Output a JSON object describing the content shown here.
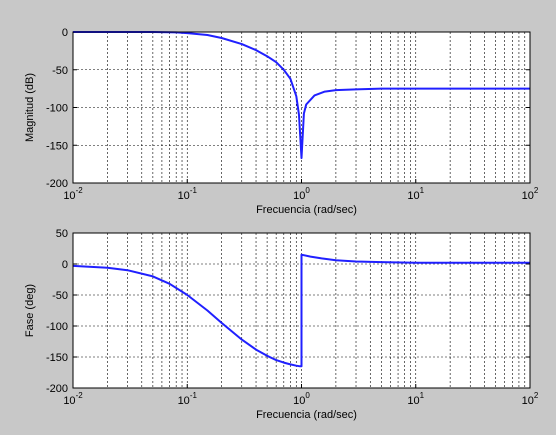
{
  "background": "#c8c8c8",
  "line_color": "#2020ff",
  "chart_data": [
    {
      "type": "line",
      "xscale": "log",
      "xlim": [
        0.01,
        100
      ],
      "ylim": [
        -200,
        0
      ],
      "grid": true,
      "xlabel": "Frecuencia (rad/sec)",
      "ylabel": "Magnitud (dB)",
      "xticks": [
        {
          "base": "10",
          "exp": "-2"
        },
        {
          "base": "10",
          "exp": "-1"
        },
        {
          "base": "10",
          "exp": "0"
        },
        {
          "base": "10",
          "exp": "1"
        },
        {
          "base": "10",
          "exp": "2"
        }
      ],
      "yticks": [
        "0",
        "-50",
        "-100",
        "-150",
        "-200"
      ],
      "series": [
        {
          "x": [
            0.01,
            0.05,
            0.08,
            0.1,
            0.15,
            0.2,
            0.3,
            0.4,
            0.5,
            0.6,
            0.7,
            0.8,
            0.9,
            0.95,
            1.0,
            1.05,
            1.1,
            1.3,
            1.6,
            2,
            3,
            5,
            10,
            30,
            100
          ],
          "y": [
            0,
            0,
            -0.5,
            -1.5,
            -4,
            -8,
            -16,
            -24,
            -32,
            -40,
            -50,
            -62,
            -85,
            -110,
            -167,
            -108,
            -96,
            -84,
            -79,
            -77,
            -76,
            -75,
            -75,
            -75,
            -75
          ]
        }
      ]
    },
    {
      "type": "line",
      "xscale": "log",
      "xlim": [
        0.01,
        100
      ],
      "ylim": [
        -200,
        50
      ],
      "grid": true,
      "xlabel": "Frecuencia (rad/sec)",
      "ylabel": "Fase (deg)",
      "xticks": [
        {
          "base": "10",
          "exp": "-2"
        },
        {
          "base": "10",
          "exp": "-1"
        },
        {
          "base": "10",
          "exp": "0"
        },
        {
          "base": "10",
          "exp": "1"
        },
        {
          "base": "10",
          "exp": "2"
        }
      ],
      "yticks": [
        "50",
        "0",
        "-50",
        "-100",
        "-150",
        "-200"
      ],
      "series": [
        {
          "x": [
            0.01,
            0.02,
            0.03,
            0.05,
            0.07,
            0.1,
            0.15,
            0.2,
            0.3,
            0.4,
            0.5,
            0.6,
            0.7,
            0.8,
            0.9,
            0.97,
            1.0,
            1.0,
            1.2,
            1.5,
            2,
            3,
            5,
            10,
            30,
            100
          ],
          "y": [
            -3,
            -6,
            -10,
            -20,
            -32,
            -50,
            -75,
            -95,
            -122,
            -138,
            -148,
            -155,
            -159,
            -162,
            -164,
            -165,
            -165,
            15,
            12,
            9,
            6,
            4,
            3,
            2,
            2,
            2
          ]
        }
      ]
    }
  ]
}
